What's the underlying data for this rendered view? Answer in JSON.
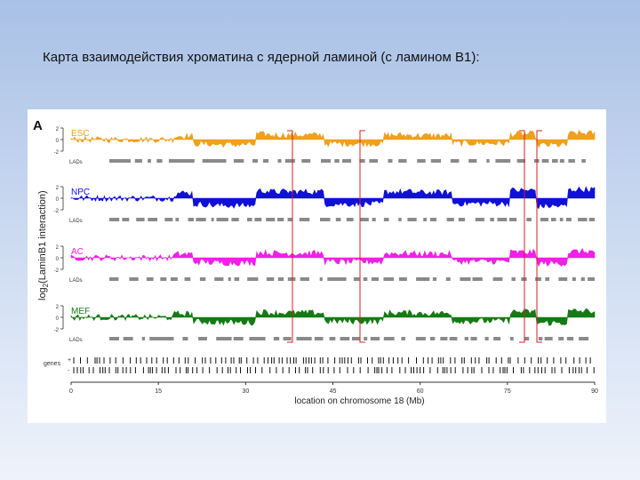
{
  "slide": {
    "title": "Карта взаимодействия хроматина с ядерной ламиной (с ламином В1):"
  },
  "figure": {
    "panel_label": "A",
    "y_axis_label_prefix": "log",
    "y_axis_label_sub": "2",
    "y_axis_label_rest": "(LaminB1 interaction)",
    "tick_labels": [
      "2",
      "0",
      "-2"
    ],
    "lads_label": "LADs",
    "genes_label": "genes",
    "strand_plus": "+",
    "strand_minus": "-",
    "tracks": [
      {
        "name": "ESC",
        "color": "#f0a01e"
      },
      {
        "name": "NPC",
        "color": "#1010d8"
      },
      {
        "name": "AC",
        "color": "#f020e8"
      },
      {
        "name": "MEF",
        "color": "#157a15"
      }
    ],
    "highlight_color": "#d42020",
    "x_axis": {
      "title": "location on chromosome 18 (Mb)",
      "ticks": [
        "0",
        "15",
        "30",
        "45",
        "60",
        "75",
        "90"
      ]
    }
  }
}
